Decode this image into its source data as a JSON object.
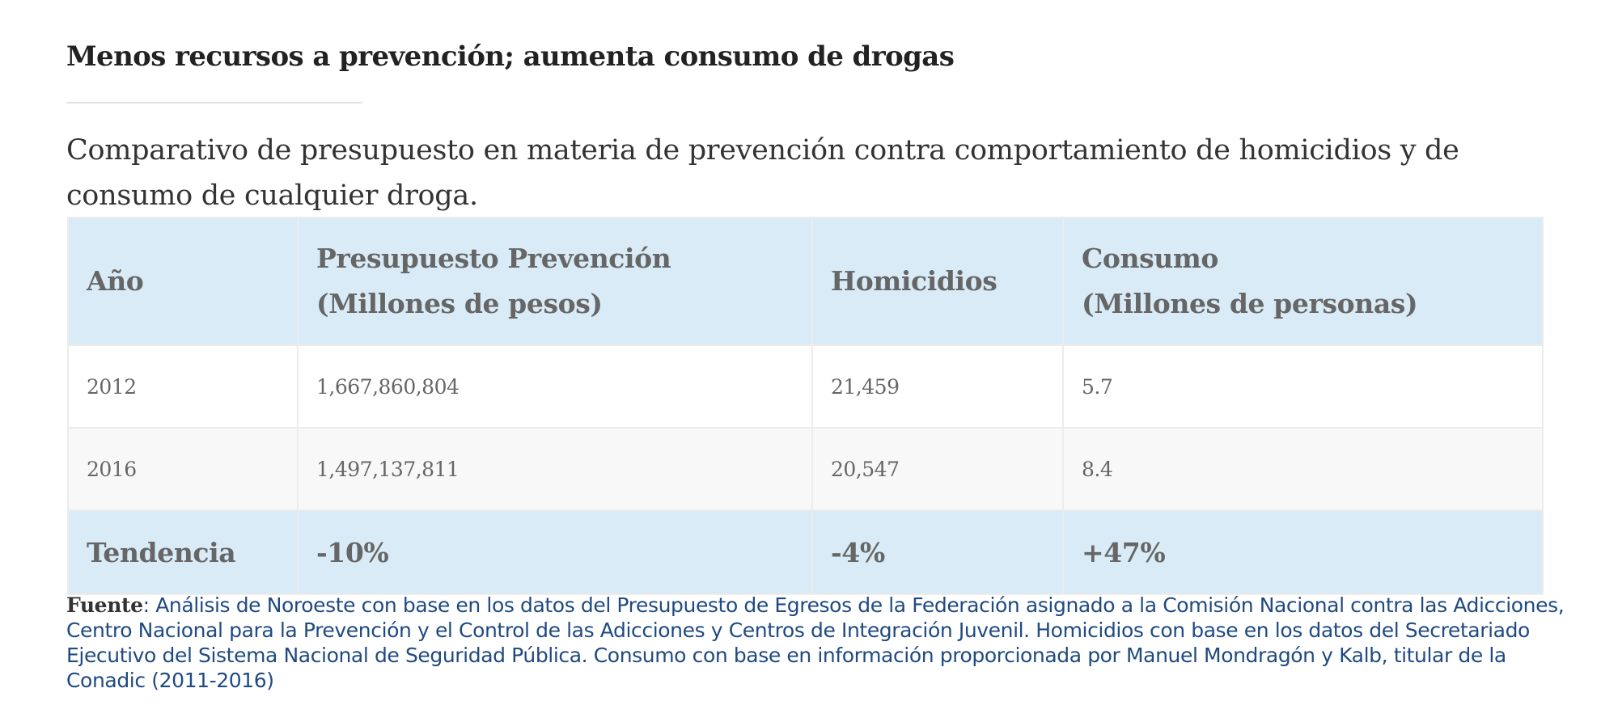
{
  "article": {
    "title": "Menos recursos a prevención; aumenta consumo de drogas",
    "subtitle": "Comparativo de presupuesto en materia de prevención contra comportamiento de homicidios y de consumo de cualquier droga."
  },
  "table": {
    "headers": [
      {
        "line1": "Año",
        "line2": ""
      },
      {
        "line1": "Presupuesto Prevención",
        "line2": "(Millones de pesos)"
      },
      {
        "line1": "Homicidios",
        "line2": ""
      },
      {
        "line1": "Consumo",
        "line2": "(Millones de personas)"
      }
    ],
    "rows": [
      [
        "2012",
        "1,667,860,804",
        "21,459",
        "5.7"
      ],
      [
        "2016",
        "1,497,137,811",
        "20,547",
        "8.4"
      ]
    ],
    "trend": [
      "Tendencia",
      "-10%",
      "-4%",
      "+47%"
    ]
  },
  "source": {
    "label": "Fuente",
    "text": ": Análisis de Noroeste con base en los datos del Presupuesto de Egresos de la Federación asignado a la Comisión Nacional contra las Adicciones, Centro Nacional para la Prevención y el Control de las Adicciones y Centros de Integración Juvenil.  Homicidios con base en los datos del Secretariado Ejecutivo del Sistema Nacional de Seguridad Pública.  Consumo con base en información proporcionada por Manuel Mondragón y Kalb, titular de la Conadic (2011-2016)"
  },
  "colors": {
    "header_bg": "#d9ebf6",
    "row_alt_bg": "#f8f8f8",
    "source_text": "#1f4a82",
    "cell_text": "#666666"
  }
}
